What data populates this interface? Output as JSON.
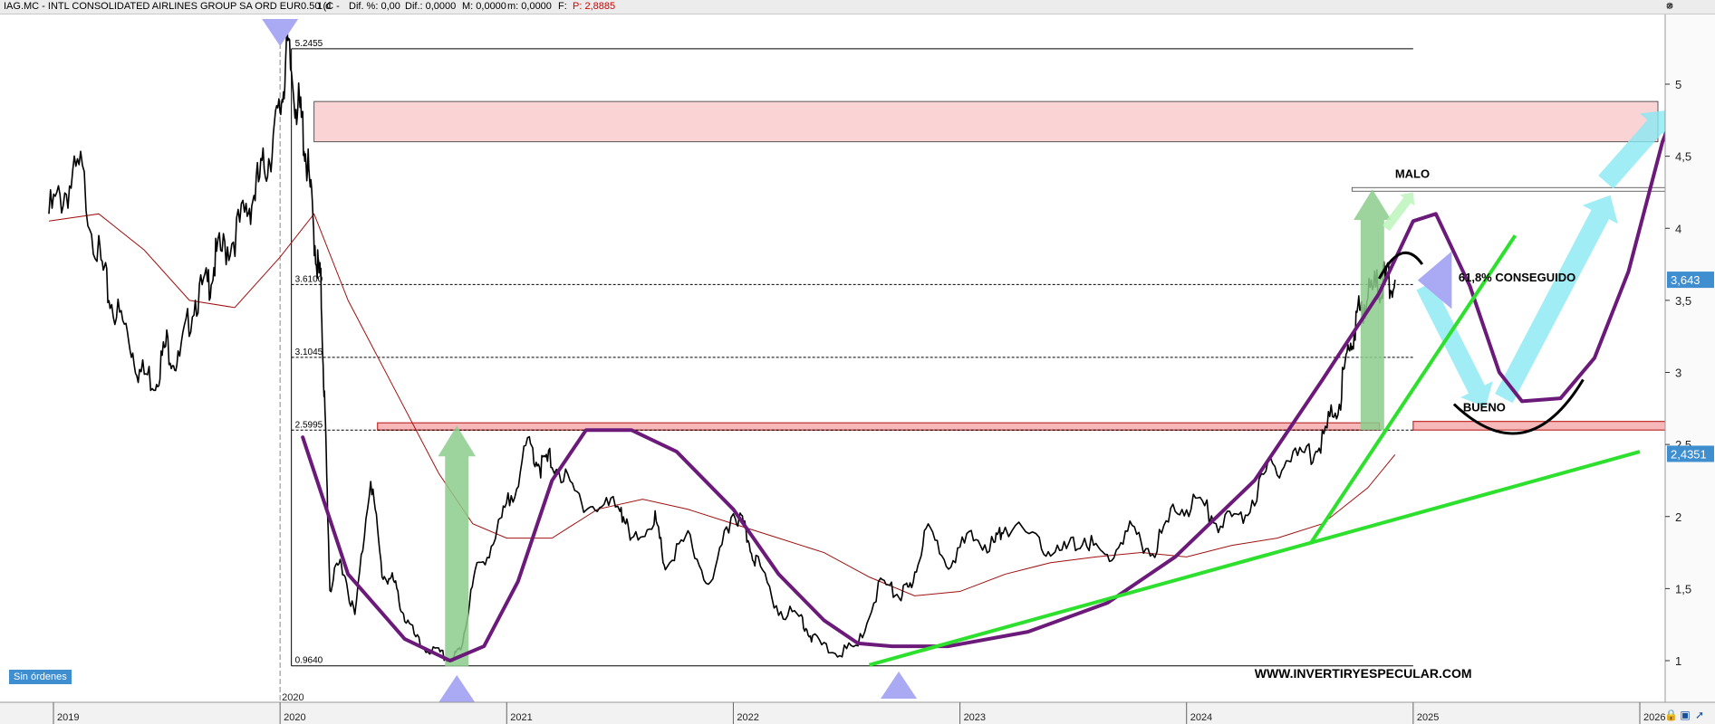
{
  "header": {
    "symbol": "IAG.MC - INTL CONSOLIDATED AIRLINES GROUP SA ORD EUR0.50 (C -",
    "interval": "1 d",
    "change": "Dif.: 0,0000",
    "change_pct": "Dif. %: 0,00",
    "max": "M: 0,0000",
    "min": "m: 0,0000",
    "fields_label": "F:",
    "price": "P: 2,8885"
  },
  "window_buttons": [
    "settings-icon",
    "close-icon",
    "arrow-icon"
  ],
  "orders_badge": "Sin órdenes",
  "footer_icons": [
    "lock-icon",
    "save-icon",
    "pointer-icon"
  ],
  "colors": {
    "price": "#000000",
    "moving_average": "#a01010",
    "purple_curve": "#6b1a7a",
    "support_green": "#2ee02e",
    "target_zone_fill": "#fad4d4",
    "resistance_fill": "#f6b8b8",
    "triangle": "#a9a9f4",
    "green_arrow": "#8ccc8c",
    "cyan_arrow": "#8ae8f4",
    "price_badge": "#3e8ed0"
  },
  "chart_data": {
    "type": "line",
    "title": "IAG.MC - INTL CONSOLIDATED AIRLINES GROUP SA ORD EUR0.50",
    "xlabel": "",
    "ylabel": "",
    "x_ticks": [
      "2019",
      "2020",
      "2021",
      "2022",
      "2023",
      "2024",
      "2025",
      "2026"
    ],
    "y_ticks": [
      "1",
      "1,5",
      "2",
      "2,5",
      "3",
      "3,5",
      "4",
      "4,5",
      "5"
    ],
    "ylim": [
      0.75,
      5.45
    ],
    "grid": false,
    "extra_label": "2020",
    "series": [
      {
        "kind": "price",
        "x": [
          2018.98,
          2019.05,
          2019.12,
          2019.2,
          2019.25,
          2019.32,
          2019.38,
          2019.45,
          2019.5,
          2019.55,
          2019.62,
          2019.68,
          2019.72,
          2019.78,
          2019.85,
          2019.9,
          2019.95,
          2020.0,
          2020.03,
          2020.07,
          2020.1,
          2020.13,
          2020.16,
          2020.18,
          2020.2,
          2020.22,
          2020.27,
          2020.33,
          2020.4,
          2020.45,
          2020.5,
          2020.55,
          2020.62,
          2020.7,
          2020.76,
          2020.8,
          2020.86,
          2020.95,
          2021.02,
          2021.1,
          2021.15,
          2021.2,
          2021.3,
          2021.4,
          2021.5,
          2021.55,
          2021.65,
          2021.7,
          2021.8,
          2021.9,
          2022.0,
          2022.05,
          2022.1,
          2022.2,
          2022.3,
          2022.35,
          2022.45,
          2022.55,
          2022.65,
          2022.73,
          2022.78,
          2022.85,
          2022.95,
          2023.05,
          2023.15,
          2023.2,
          2023.35,
          2023.45,
          2023.55,
          2023.65,
          2023.75,
          2023.85,
          2023.95,
          2024.05,
          2024.15,
          2024.25,
          2024.35,
          2024.45,
          2024.55,
          2024.62,
          2024.68,
          2024.72,
          2024.76,
          2024.8,
          2024.85,
          2024.88,
          2024.92
        ],
        "values": [
          4.1,
          4.25,
          4.4,
          3.8,
          3.5,
          3.3,
          3.0,
          2.95,
          3.2,
          3.05,
          3.5,
          3.6,
          3.8,
          3.9,
          4.1,
          4.3,
          4.5,
          4.8,
          5.24,
          4.9,
          4.7,
          4.3,
          3.8,
          3.6,
          2.6,
          1.5,
          1.7,
          1.3,
          2.3,
          1.6,
          1.55,
          1.3,
          1.1,
          1.05,
          1.0,
          1.1,
          1.6,
          1.85,
          2.15,
          2.5,
          2.35,
          2.4,
          2.15,
          2.05,
          2.1,
          1.8,
          2.0,
          1.65,
          1.85,
          1.5,
          2.05,
          1.9,
          1.7,
          1.35,
          1.3,
          1.15,
          1.05,
          1.1,
          1.55,
          1.45,
          1.5,
          1.9,
          1.7,
          1.85,
          1.8,
          1.95,
          1.8,
          1.75,
          1.85,
          1.7,
          1.9,
          1.75,
          2.05,
          2.1,
          1.95,
          2.0,
          2.3,
          2.4,
          2.45,
          2.6,
          2.85,
          3.2,
          3.4,
          3.55,
          3.6,
          3.643,
          3.643
        ]
      },
      {
        "kind": "moving_average",
        "x": [
          2018.98,
          2019.2,
          2019.4,
          2019.6,
          2019.8,
          2020.0,
          2020.15,
          2020.3,
          2020.5,
          2020.7,
          2020.85,
          2021.0,
          2021.2,
          2021.4,
          2021.6,
          2021.8,
          2022.0,
          2022.2,
          2022.4,
          2022.6,
          2022.8,
          2023.0,
          2023.2,
          2023.4,
          2023.6,
          2023.8,
          2024.0,
          2024.2,
          2024.4,
          2024.6,
          2024.8,
          2024.92
        ],
        "values": [
          4.05,
          4.1,
          3.85,
          3.5,
          3.45,
          3.8,
          4.1,
          3.5,
          2.9,
          2.3,
          1.95,
          1.85,
          1.85,
          2.05,
          2.12,
          2.05,
          1.95,
          1.85,
          1.75,
          1.58,
          1.45,
          1.48,
          1.6,
          1.68,
          1.72,
          1.75,
          1.72,
          1.8,
          1.85,
          1.95,
          2.2,
          2.43
        ]
      }
    ],
    "price_labels": [
      "3,643",
      "2,4351"
    ],
    "price_label_values": [
      3.643,
      2.4351
    ],
    "fib_levels": [
      {
        "label": "5.2455",
        "value": 5.2455,
        "x_start": 2020.05,
        "x_end": 2025.0,
        "style": "solid"
      },
      {
        "label": "3.6100",
        "value": 3.61,
        "x_start": 2020.05,
        "x_end": 2025.0,
        "style": "dotted"
      },
      {
        "label": "3.1045",
        "value": 3.1045,
        "x_start": 2020.05,
        "x_end": 2025.0,
        "style": "dotted"
      },
      {
        "label": "2.5995",
        "value": 2.5995,
        "x_start": 2020.05,
        "x_end": 2025.0,
        "style": "dotted"
      },
      {
        "label": "0.9640",
        "value": 0.964,
        "x_start": 2020.05,
        "x_end": 2025.0,
        "style": "solid"
      }
    ],
    "zones": [
      {
        "kind": "target_zone",
        "y_top": 4.88,
        "y_bottom": 4.6,
        "x_start": 2020.15,
        "x_end": 2026.08
      },
      {
        "kind": "resistance_band",
        "y_top": 2.65,
        "y_bottom": 2.6,
        "x_start": 2020.43,
        "x_end": 2024.85
      },
      {
        "kind": "resistance_band",
        "y_top": 2.66,
        "y_bottom": 2.6,
        "x_start": 2025.0,
        "x_end": 2026.12
      }
    ],
    "annotations": [
      {
        "text": "MALO",
        "x": 2024.92,
        "y": 4.35
      },
      {
        "text": "61,8% CONSEGUIDO",
        "x": 2025.2,
        "y": 3.63
      },
      {
        "text": "BUENO",
        "x": 2025.22,
        "y": 2.73
      },
      {
        "text": "WWW.INVERTIRYESPECULAR.COM",
        "x": 2024.3,
        "y": 0.88
      }
    ]
  }
}
